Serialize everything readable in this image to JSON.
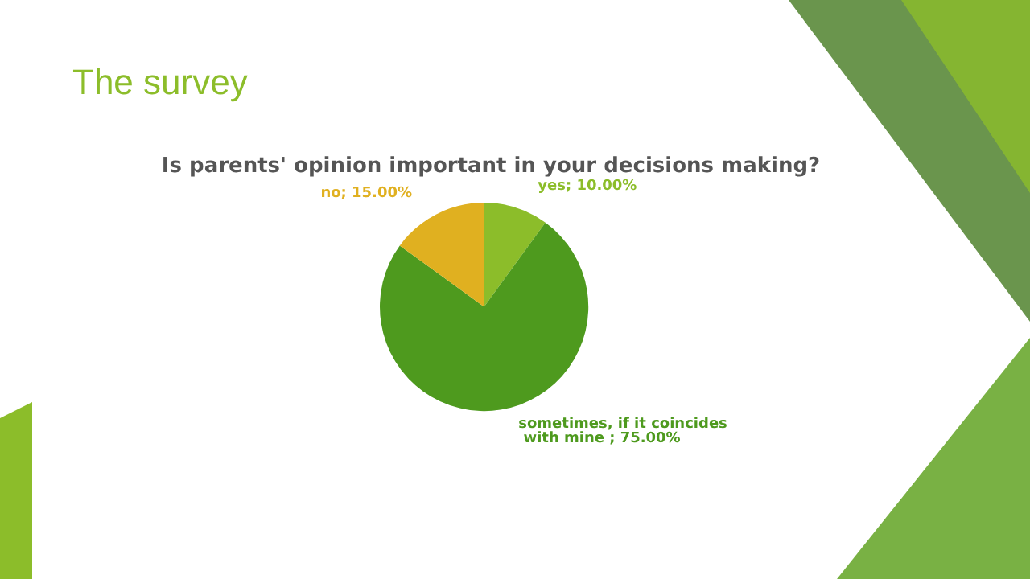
{
  "chart_data": {
    "type": "pie",
    "title": "The survey",
    "subtitle": "Is parents' opinion important in your decisions making?",
    "categories": [
      "yes",
      "sometimes, if it coincides with mine",
      "no"
    ],
    "values": [
      10,
      75,
      15
    ],
    "colors": [
      "#8cbd2a",
      "#4e9a1e",
      "#e0b020"
    ],
    "value_labels": [
      "10.00%",
      "75.00%",
      "15.00%"
    ],
    "legend": false
  }
}
